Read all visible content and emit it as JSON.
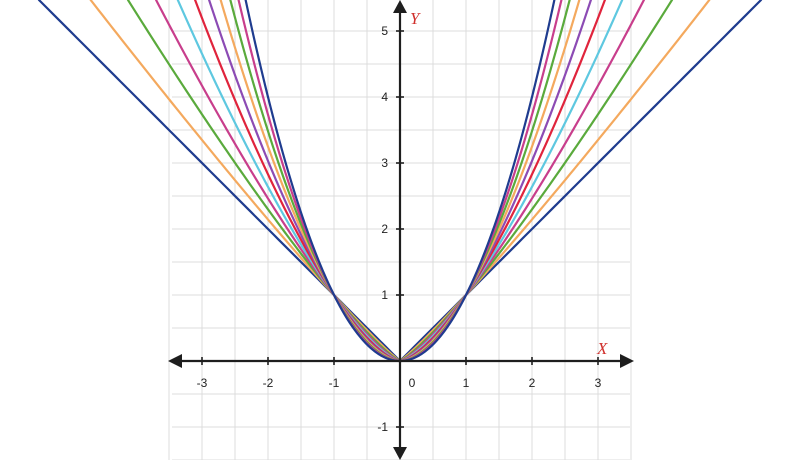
{
  "chart_data": {
    "type": "line",
    "title": "",
    "xlabel": "X",
    "ylabel": "Y",
    "xlim": [
      -3.5,
      3.5
    ],
    "ylim": [
      -1.5,
      5.5
    ],
    "x_ticks": [
      -3,
      -2,
      -1,
      0,
      1,
      2,
      3
    ],
    "x_tick_labels": [
      "-3",
      "-2",
      "-1",
      "0",
      "1",
      "2",
      "3"
    ],
    "y_ticks": [
      -1,
      1,
      2,
      3,
      4,
      5
    ],
    "y_tick_labels": [
      "-1",
      "1",
      "2",
      "3",
      "4",
      "5"
    ],
    "grid": true,
    "grid_step": 0.5,
    "series": [
      {
        "formula": "y = |x|^p",
        "exponent": 1.0,
        "color": "#1f3c8f"
      },
      {
        "formula": "y = |x|^p",
        "exponent": 1.1,
        "color": "#f4a95e"
      },
      {
        "formula": "y = |x|^p",
        "exponent": 1.2,
        "color": "#5aaa3c"
      },
      {
        "formula": "y = |x|^p",
        "exponent": 1.3,
        "color": "#c83e8c"
      },
      {
        "formula": "y = |x|^p",
        "exponent": 1.4,
        "color": "#5ec8e0"
      },
      {
        "formula": "y = |x|^p",
        "exponent": 1.5,
        "color": "#e0243c"
      },
      {
        "formula": "y = |x|^p",
        "exponent": 1.6,
        "color": "#8c4bb4"
      },
      {
        "formula": "y = |x|^p",
        "exponent": 1.7,
        "color": "#f4a95e"
      },
      {
        "formula": "y = |x|^p",
        "exponent": 1.8,
        "color": "#5aaa3c"
      },
      {
        "formula": "y = |x|^p",
        "exponent": 1.9,
        "color": "#c83e8c"
      },
      {
        "formula": "y = |x|^p",
        "exponent": 2.0,
        "color": "#1f3c8f"
      }
    ]
  }
}
